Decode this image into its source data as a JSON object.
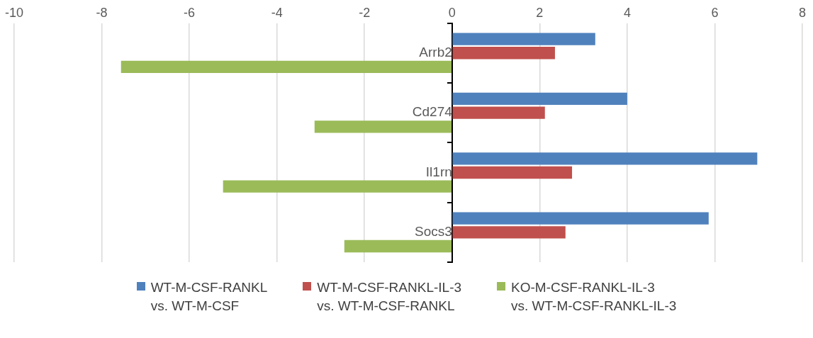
{
  "chart_data": {
    "type": "bar",
    "orientation": "horizontal",
    "categories": [
      "Arrb2",
      "Cd274",
      "Il1rn",
      "Socs3"
    ],
    "series": [
      {
        "name": "WT-M-CSF-RANKL\nvs. WT-M-CSF",
        "color": "#4f81bd",
        "values": [
          3.27,
          4.0,
          6.97,
          5.86
        ]
      },
      {
        "name": "WT-M-CSF-RANKL-IL-3\nvs. WT-M-CSF-RANKL",
        "color": "#c0504d",
        "values": [
          2.35,
          2.12,
          2.74,
          2.59
        ]
      },
      {
        "name": "KO-M-CSF-RANKL-IL-3\nvs. WT-M-CSF-RANKL-IL-3",
        "color": "#9bbb59",
        "values": [
          -7.56,
          -3.14,
          -5.23,
          -2.46
        ]
      }
    ],
    "xlim": [
      -10,
      8
    ],
    "xticks": [
      -10,
      -8,
      -6,
      -4,
      -2,
      0,
      2,
      4,
      6,
      8
    ],
    "grid": "x",
    "legend": "bottom"
  }
}
